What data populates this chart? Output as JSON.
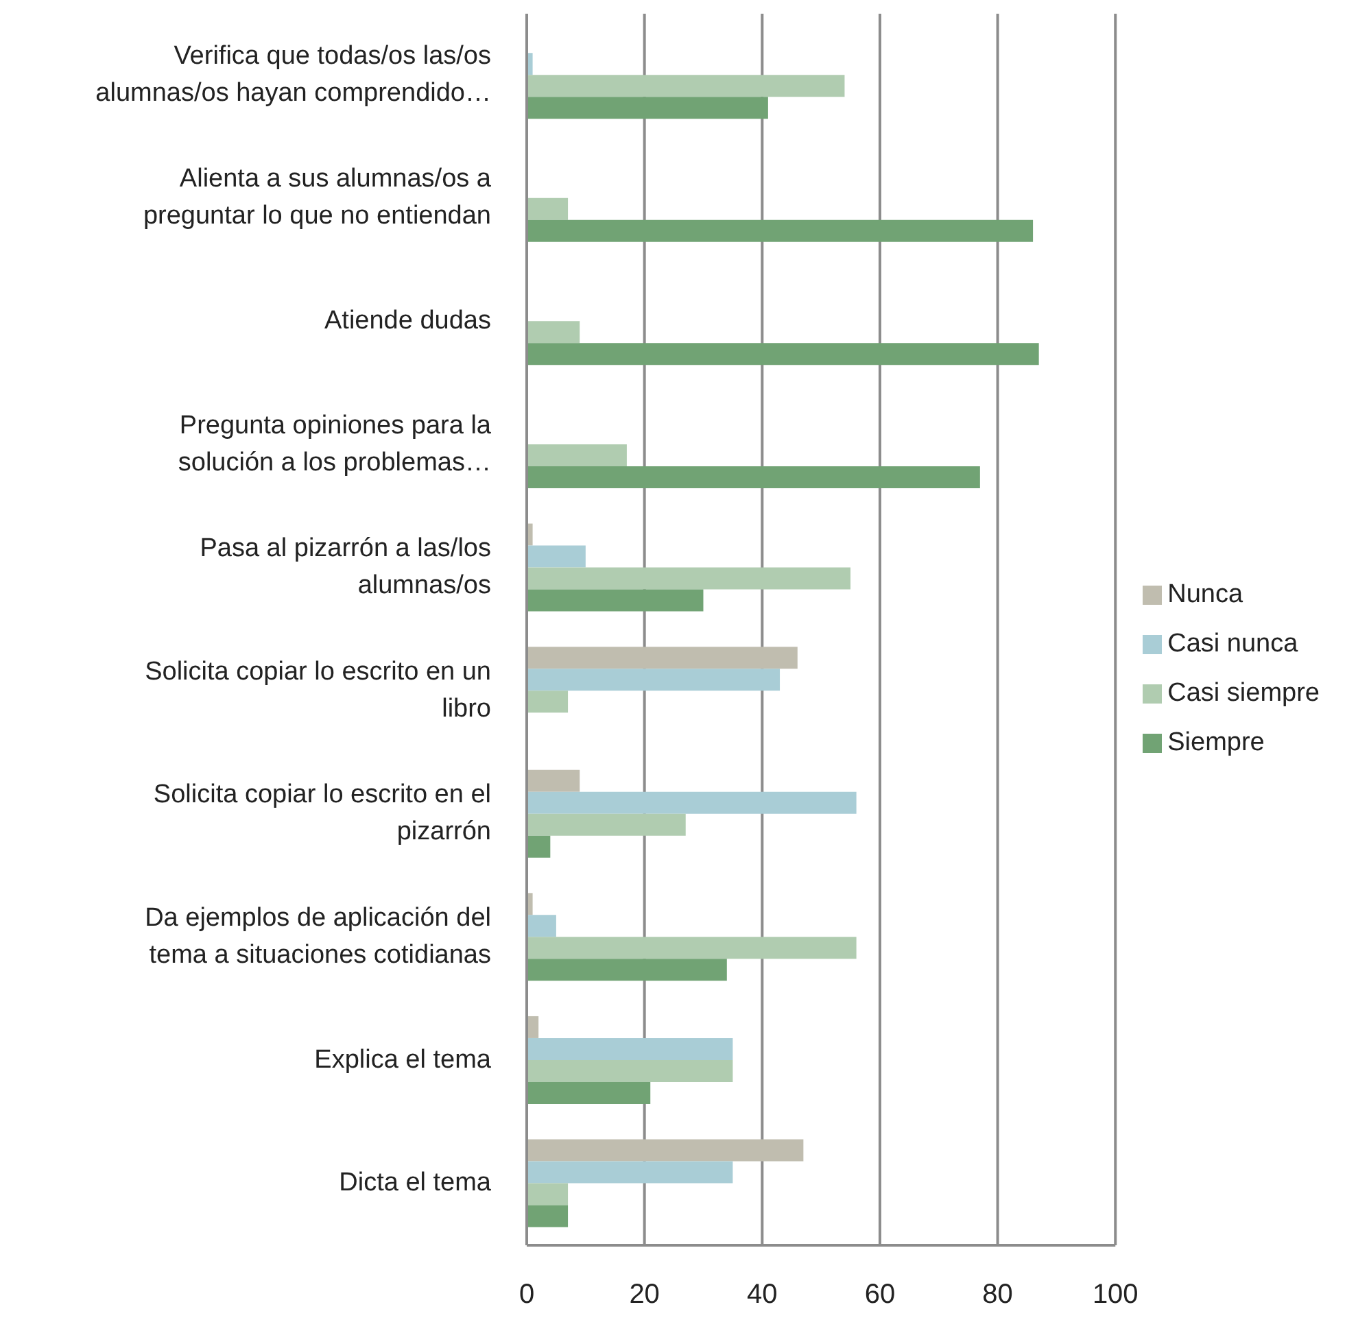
{
  "chart_data": {
    "type": "bar",
    "orientation": "horizontal",
    "categories": [
      "Verifica que todas/os las/os alumnas/os hayan comprendido…",
      "Alienta a sus alumnas/os a preguntar lo que no entiendan",
      "Atiende dudas",
      "Pregunta opiniones para la solución a los problemas…",
      "Pasa al pizarrón a las/los alumnas/os",
      "Solicita copiar lo escrito en un libro",
      "Solicita copiar lo escrito en el pizarrón",
      "Da ejemplos de aplicación del tema a situaciones cotidianas",
      "Explica el tema",
      "Dicta el tema"
    ],
    "series": [
      {
        "name": "Nunca",
        "color": "#c0bdaf",
        "values": [
          0,
          0,
          0,
          0,
          1,
          46,
          9,
          1,
          2,
          47
        ]
      },
      {
        "name": "Casi nunca",
        "color": "#a9cdd6",
        "values": [
          1,
          0,
          0,
          0,
          10,
          43,
          56,
          5,
          35,
          35
        ]
      },
      {
        "name": "Casi siempre",
        "color": "#b0ccb0",
        "values": [
          54,
          7,
          9,
          17,
          55,
          7,
          27,
          56,
          35,
          7
        ]
      },
      {
        "name": "Siempre",
        "color": "#71a374",
        "values": [
          41,
          86,
          87,
          77,
          30,
          0,
          4,
          34,
          21,
          7
        ]
      }
    ],
    "xlim": [
      0,
      100
    ],
    "xticks": [
      0,
      20,
      40,
      60,
      80,
      100
    ],
    "grid": "x",
    "legend": "right"
  }
}
